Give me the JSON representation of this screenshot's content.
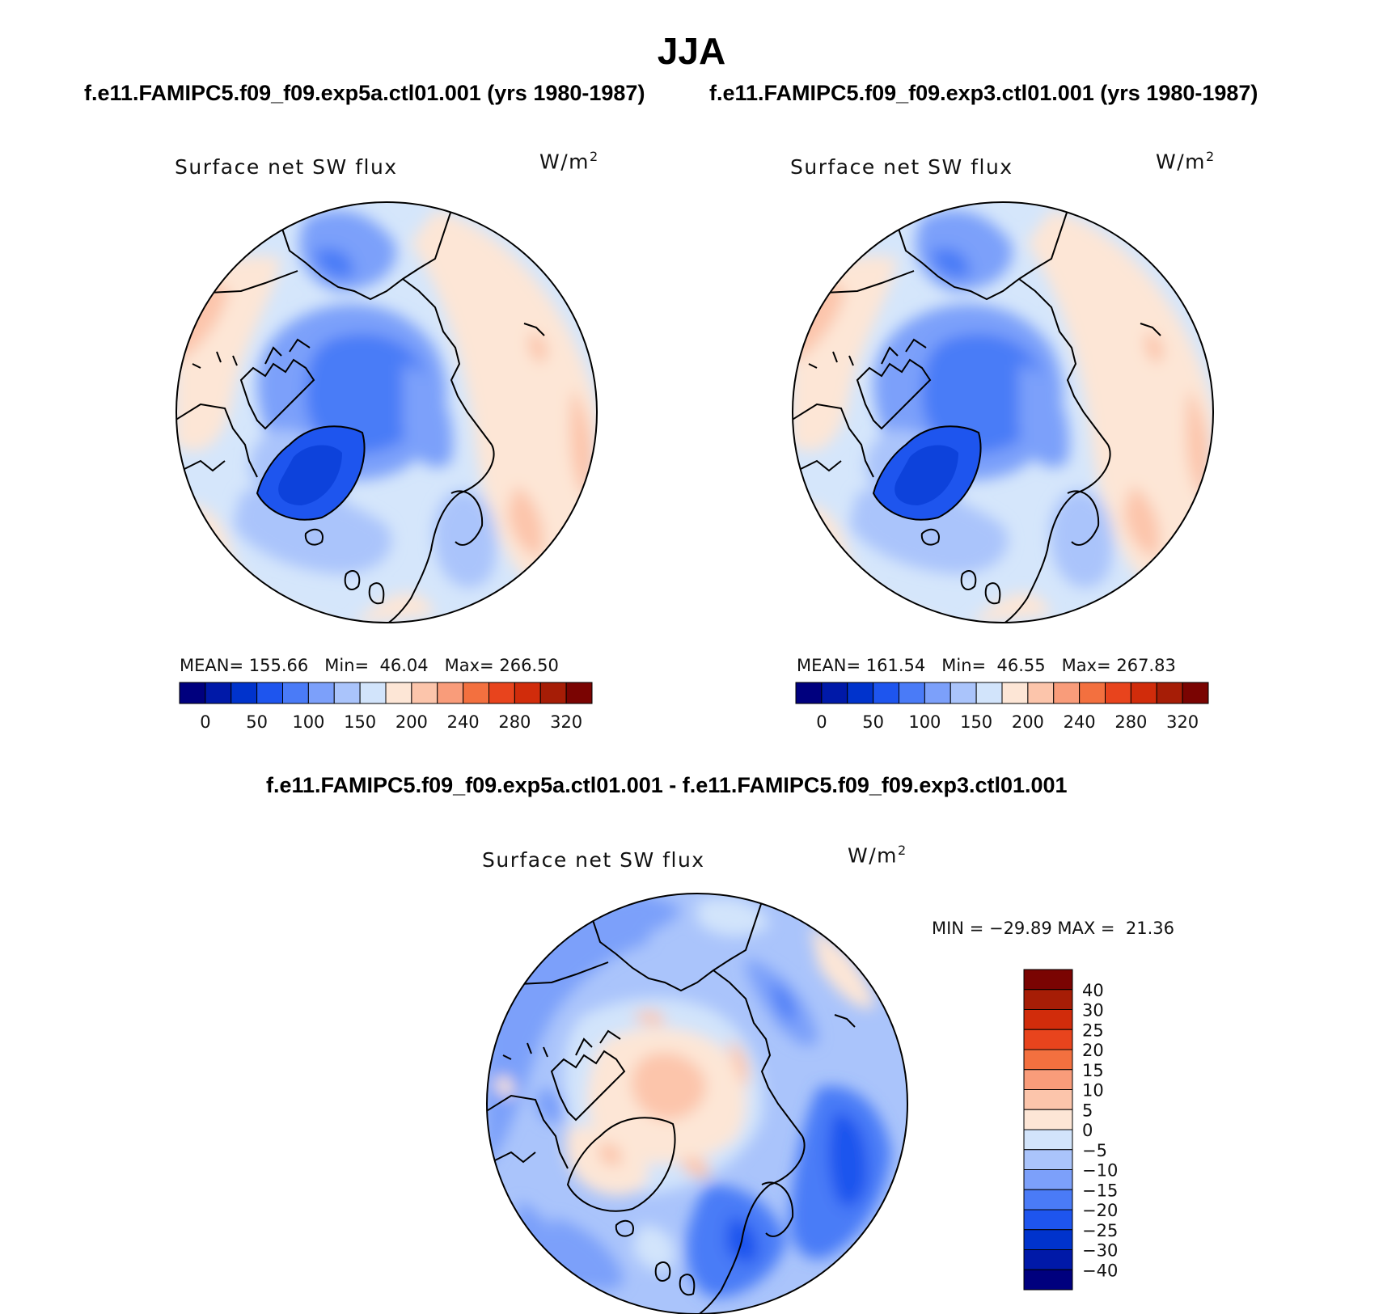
{
  "season": "JJA",
  "panels": [
    {
      "case_title": "f.e11.FAMIPC5.f09_f09.exp5a.ctl01.001 (yrs 1980-1987)",
      "variable": "Surface net SW flux",
      "units": "W/m",
      "units_exp": "2",
      "mean_label": "MEAN=",
      "mean": "155.66",
      "min_label": "Min=",
      "min": "46.04",
      "max_label": "Max=",
      "max": "266.50"
    },
    {
      "case_title": "f.e11.FAMIPC5.f09_f09.exp3.ctl01.001 (yrs 1980-1987)",
      "variable": "Surface net SW flux",
      "units": "W/m",
      "units_exp": "2",
      "mean_label": "MEAN=",
      "mean": "161.54",
      "min_label": "Min=",
      "min": "46.55",
      "max_label": "Max=",
      "max": "267.83"
    }
  ],
  "diff_panel": {
    "case_title": "f.e11.FAMIPC5.f09_f09.exp5a.ctl01.001 - f.e11.FAMIPC5.f09_f09.exp3.ctl01.001",
    "variable": "Surface net SW flux",
    "units": "W/m",
    "units_exp": "2",
    "minmax": "MIN = −29.89 MAX =  21.36"
  },
  "chart_data": [
    {
      "type": "heatmap",
      "title": "Surface net SW flux",
      "projection": "north polar stereographic",
      "units": "W/m2",
      "stats": {
        "mean": 155.66,
        "min": 46.04,
        "max": 266.5
      },
      "colorbar": {
        "orientation": "horizontal",
        "levels": [
          0,
          25,
          50,
          75,
          100,
          125,
          150,
          175,
          200,
          220,
          240,
          260,
          280,
          300,
          320
        ],
        "tick_labels": [
          "0",
          "50",
          "100",
          "150",
          "200",
          "240",
          "280",
          "320"
        ],
        "colors": [
          "#00007e",
          "#0019a8",
          "#0033cc",
          "#1e55ee",
          "#4a7bf7",
          "#7ca0fa",
          "#aac4fb",
          "#d2e4fb",
          "#fde6d6",
          "#fcc5ab",
          "#f99c7a",
          "#f3703f",
          "#e8441d",
          "#d12c0b",
          "#a61d06",
          "#7a0402"
        ]
      }
    },
    {
      "type": "heatmap",
      "title": "Surface net SW flux",
      "projection": "north polar stereographic",
      "units": "W/m2",
      "stats": {
        "mean": 161.54,
        "min": 46.55,
        "max": 267.83
      },
      "colorbar": {
        "orientation": "horizontal",
        "levels": [
          0,
          25,
          50,
          75,
          100,
          125,
          150,
          175,
          200,
          220,
          240,
          260,
          280,
          300,
          320
        ],
        "tick_labels": [
          "0",
          "50",
          "100",
          "150",
          "200",
          "240",
          "280",
          "320"
        ],
        "colors": [
          "#00007e",
          "#0019a8",
          "#0033cc",
          "#1e55ee",
          "#4a7bf7",
          "#7ca0fa",
          "#aac4fb",
          "#d2e4fb",
          "#fde6d6",
          "#fcc5ab",
          "#f99c7a",
          "#f3703f",
          "#e8441d",
          "#d12c0b",
          "#a61d06",
          "#7a0402"
        ]
      }
    },
    {
      "type": "heatmap",
      "title": "Surface net SW flux (difference)",
      "projection": "north polar stereographic",
      "units": "W/m2",
      "stats": {
        "min": -29.89,
        "max": 21.36
      },
      "colorbar": {
        "orientation": "vertical",
        "levels": [
          -40,
          -30,
          -25,
          -20,
          -15,
          -10,
          -5,
          0,
          5,
          10,
          15,
          20,
          25,
          30,
          40
        ],
        "tick_labels": [
          "40",
          "30",
          "25",
          "20",
          "15",
          "10",
          "5",
          "0",
          "−5",
          "−10",
          "−15",
          "−20",
          "−25",
          "−30",
          "−40"
        ],
        "colors": [
          "#00007e",
          "#0019a8",
          "#0033cc",
          "#1e55ee",
          "#4a7bf7",
          "#7ca0fa",
          "#aac4fb",
          "#d2e4fb",
          "#fde6d6",
          "#fcc5ab",
          "#f99c7a",
          "#f3703f",
          "#e8441d",
          "#d12c0b",
          "#a61d06",
          "#7a0402"
        ]
      }
    }
  ]
}
